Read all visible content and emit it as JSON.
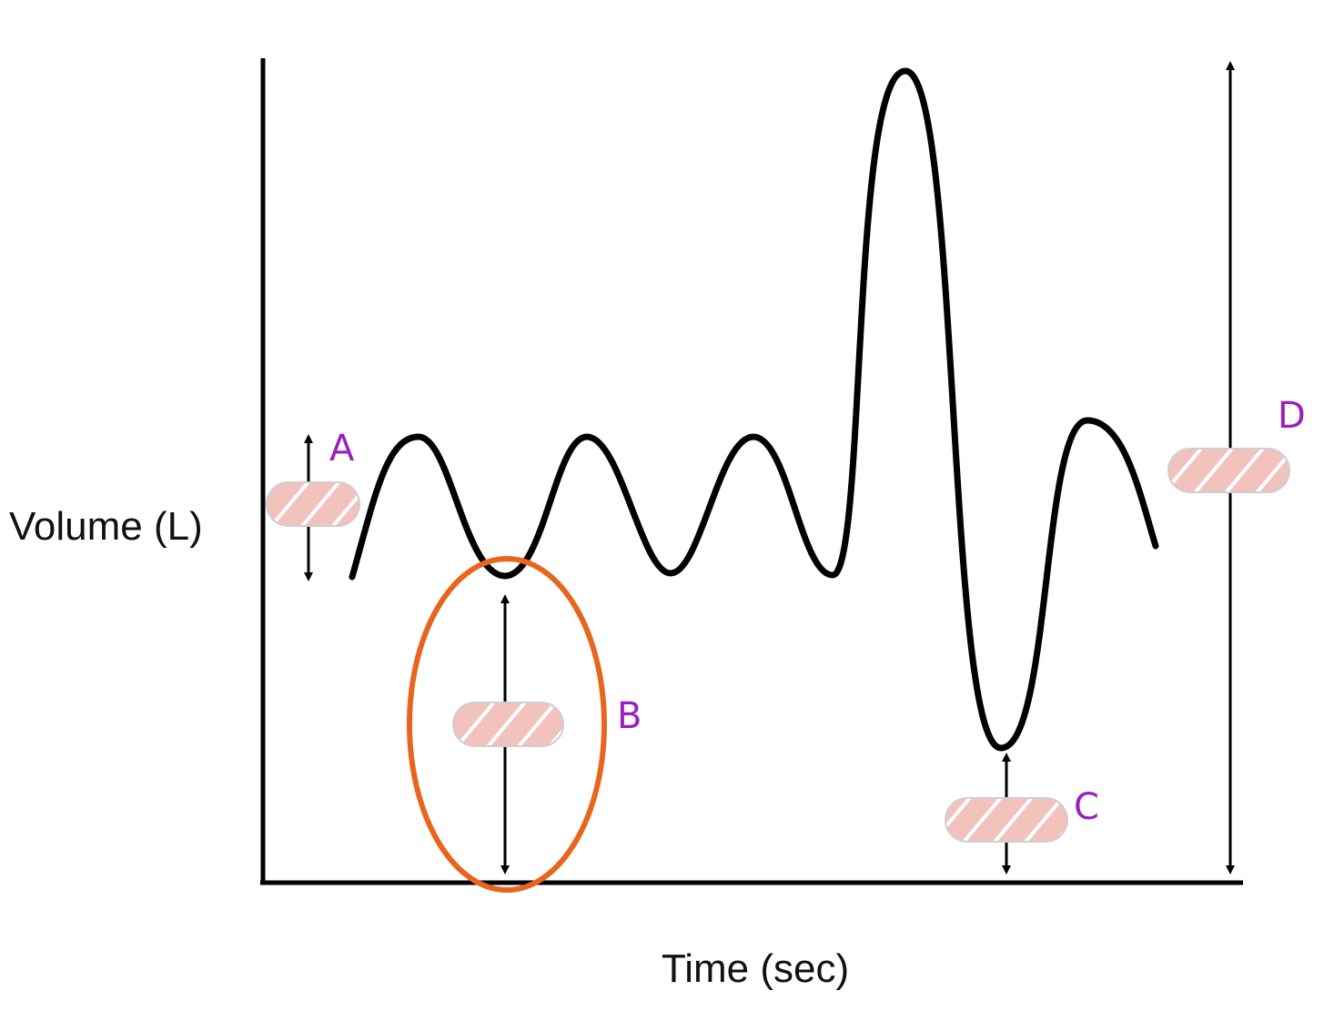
{
  "axes": {
    "ylabel": "Volume (L)",
    "xlabel": "Time (sec)"
  },
  "labels": {
    "a": "A",
    "b": "B",
    "c": "C",
    "d": "D"
  },
  "colors": {
    "curve": "#000000",
    "highlight_ellipse": "#e8651e",
    "label_text": "#9b1fc1",
    "blank_fill": "#f2c2bd",
    "blank_stripe": "#ffffff"
  }
}
